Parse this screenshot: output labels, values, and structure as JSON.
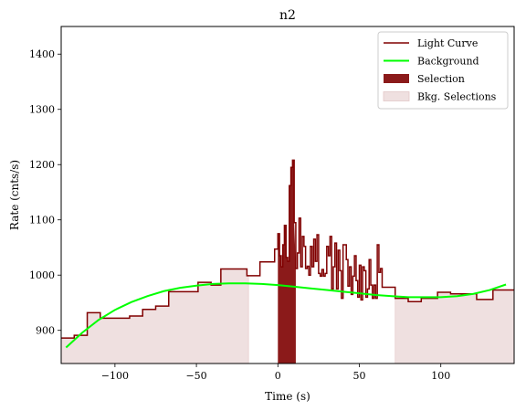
{
  "chart_data": {
    "type": "line",
    "title": "n2",
    "xlabel": "Time (s)",
    "ylabel": "Rate (cnts/s)",
    "xlim": [
      -133,
      145
    ],
    "ylim": [
      840,
      1450
    ],
    "xticks": [
      -100,
      -50,
      0,
      50,
      100
    ],
    "yticks": [
      900,
      1000,
      1100,
      1200,
      1300,
      1400
    ],
    "xtick_labels": [
      "−100",
      "−50",
      "0",
      "50",
      "100"
    ],
    "ytick_labels": [
      "900",
      "1000",
      "1100",
      "1200",
      "1300",
      "1400"
    ],
    "grid": false,
    "legend_position": "top-right",
    "legend": [
      "Light Curve",
      "Background",
      "Selection",
      "Bkg. Selections"
    ],
    "colors": {
      "light_curve": "#800000",
      "background": "#00ff00",
      "selection": "#8b1a1a",
      "bkg_selection": "#efe0e0"
    },
    "light_curve": {
      "x": [
        -133,
        -125,
        -117,
        -109,
        -99,
        -91,
        -83,
        -75,
        -67,
        -57,
        -49,
        -41,
        -35,
        -27,
        -19,
        -11,
        -2,
        0,
        1,
        2,
        3,
        4,
        5,
        6,
        7,
        8,
        9,
        10,
        11,
        12,
        13,
        14,
        15,
        16,
        17,
        18,
        19,
        20,
        21,
        22,
        23,
        24,
        25,
        26,
        27,
        28,
        29,
        30,
        31,
        32,
        33,
        34,
        35,
        36,
        37,
        38,
        39,
        40,
        41,
        42,
        43,
        44,
        45,
        46,
        47,
        48,
        49,
        50,
        51,
        52,
        53,
        54,
        55,
        56,
        57,
        58,
        59,
        60,
        61,
        62,
        63,
        64,
        72,
        80,
        88,
        98,
        106,
        114,
        122,
        132,
        145
      ],
      "y": [
        886,
        891,
        932,
        922,
        922,
        926,
        938,
        944,
        970,
        970,
        987,
        982,
        1011,
        1011,
        999,
        1024,
        1047,
        1075,
        1035,
        1015,
        1055,
        1090,
        1032,
        1025,
        1162,
        1195,
        1208,
        1095,
        1012,
        1040,
        1103,
        1015,
        1070,
        1052,
        1012,
        1016,
        1000,
        1052,
        1015,
        1065,
        1025,
        1073,
        1003,
        998,
        1010,
        998,
        1003,
        1052,
        1035,
        1070,
        975,
        1015,
        1058,
        975,
        1045,
        1008,
        958,
        1055,
        1055,
        1028,
        980,
        1015,
        965,
        998,
        1035,
        990,
        960,
        1018,
        955,
        1015,
        1008,
        960,
        975,
        1028,
        982,
        958,
        982,
        958,
        1055,
        1005,
        1012,
        978,
        958,
        952,
        958,
        969,
        966,
        966,
        956,
        973,
        973
      ]
    },
    "background": {
      "x": [
        -130,
        -120,
        -110,
        -100,
        -90,
        -80,
        -70,
        -60,
        -50,
        -40,
        -30,
        -20,
        -10,
        0,
        10,
        20,
        30,
        40,
        50,
        60,
        70,
        80,
        90,
        100,
        110,
        120,
        130,
        140
      ],
      "y": [
        869,
        896,
        919,
        937,
        951,
        962,
        971,
        977,
        981,
        984,
        985,
        985,
        984,
        982,
        979,
        976,
        973,
        970,
        967,
        964,
        962,
        960,
        960,
        960,
        962,
        966,
        973,
        983
      ]
    },
    "selection": {
      "x": [
        0,
        11
      ]
    },
    "bkg_selections": [
      [
        -133,
        -18
      ],
      [
        72,
        145
      ]
    ]
  }
}
